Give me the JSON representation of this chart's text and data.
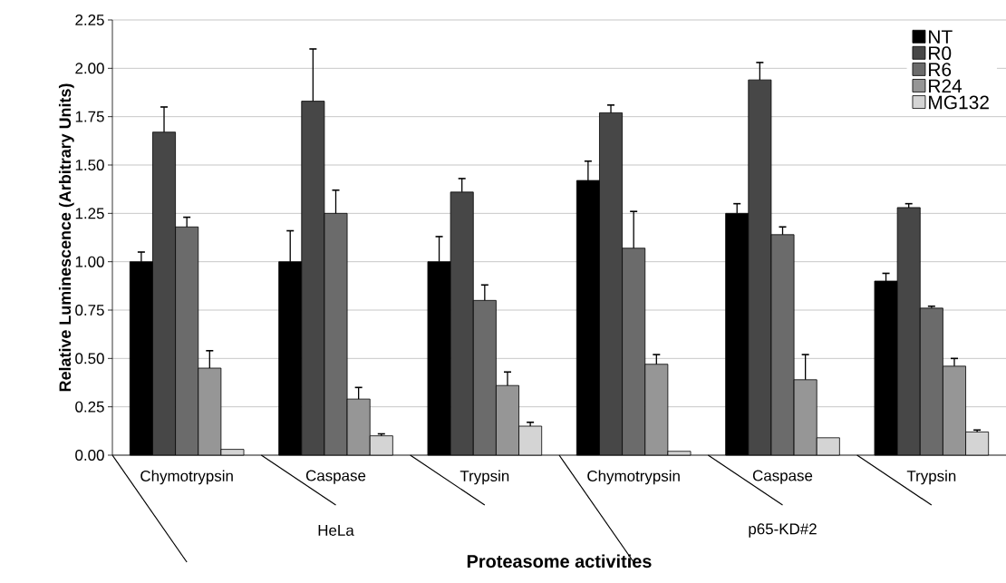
{
  "chart_data": {
    "type": "bar",
    "xlabel": "Proteasome activities",
    "ylabel": "Relative Luminescence (Arbitrary Units)",
    "categories": [
      "Chymotrypsin",
      "Caspase",
      "Trypsin",
      "Chymotrypsin",
      "Caspase",
      "Trypsin"
    ],
    "annotations": [
      "HeLa",
      "p65-KD#2"
    ],
    "ylim": [
      0,
      2.25
    ],
    "yticks": [
      {
        "value": 0,
        "label": "0.00"
      },
      {
        "value": 0.25,
        "label": "0.25"
      },
      {
        "value": 0.5,
        "label": "0.50"
      },
      {
        "value": 0.75,
        "label": "0.75"
      },
      {
        "value": 1,
        "label": "1.00"
      },
      {
        "value": 1.25,
        "label": "1.25"
      },
      {
        "value": 1.5,
        "label": "1.50"
      },
      {
        "value": 1.75,
        "label": "1.75"
      },
      {
        "value": 2,
        "label": "2.00"
      },
      {
        "value": 2.25,
        "label": "2.25"
      }
    ],
    "grid": "y",
    "legend": "top right",
    "series": [
      {
        "name": "NT",
        "color": "#000000",
        "values": [
          1.0,
          1.0,
          1.0,
          1.42,
          1.25,
          0.9
        ],
        "errors": [
          [
            1.0,
            1.05
          ],
          [
            1.0,
            1.16
          ],
          [
            1.0,
            1.13
          ],
          [
            1.42,
            1.52
          ],
          [
            1.25,
            1.3
          ],
          [
            0.9,
            0.94
          ]
        ]
      },
      {
        "name": "R0",
        "color": "#474747",
        "values": [
          1.67,
          1.83,
          1.36,
          1.77,
          1.94,
          1.28
        ],
        "errors": [
          [
            1.67,
            1.8
          ],
          [
            1.83,
            2.1
          ],
          [
            1.36,
            1.43
          ],
          [
            1.77,
            1.81
          ],
          [
            1.94,
            2.03
          ],
          [
            1.28,
            1.3
          ]
        ]
      },
      {
        "name": "R6",
        "color": "#6b6b6b",
        "values": [
          1.18,
          1.25,
          0.8,
          1.07,
          1.14,
          0.76
        ],
        "errors": [
          [
            1.18,
            1.23
          ],
          [
            1.25,
            1.37
          ],
          [
            0.8,
            0.88
          ],
          [
            1.07,
            1.26
          ],
          [
            1.14,
            1.18
          ],
          [
            0.76,
            0.77
          ]
        ]
      },
      {
        "name": "R24",
        "color": "#969696",
        "values": [
          0.45,
          0.29,
          0.36,
          0.47,
          0.39,
          0.46
        ],
        "errors": [
          [
            0.45,
            0.54
          ],
          [
            0.29,
            0.35
          ],
          [
            0.36,
            0.43
          ],
          [
            0.47,
            0.52
          ],
          [
            0.39,
            0.52
          ],
          [
            0.46,
            0.5
          ]
        ]
      },
      {
        "name": "MG132",
        "color": "#d4d4d4",
        "values": [
          0.03,
          0.1,
          0.15,
          0.02,
          0.09,
          0.12
        ],
        "errors": [
          null,
          [
            0.1,
            0.11
          ],
          [
            0.15,
            0.17
          ],
          null,
          null,
          [
            0.12,
            0.13
          ]
        ]
      }
    ]
  }
}
